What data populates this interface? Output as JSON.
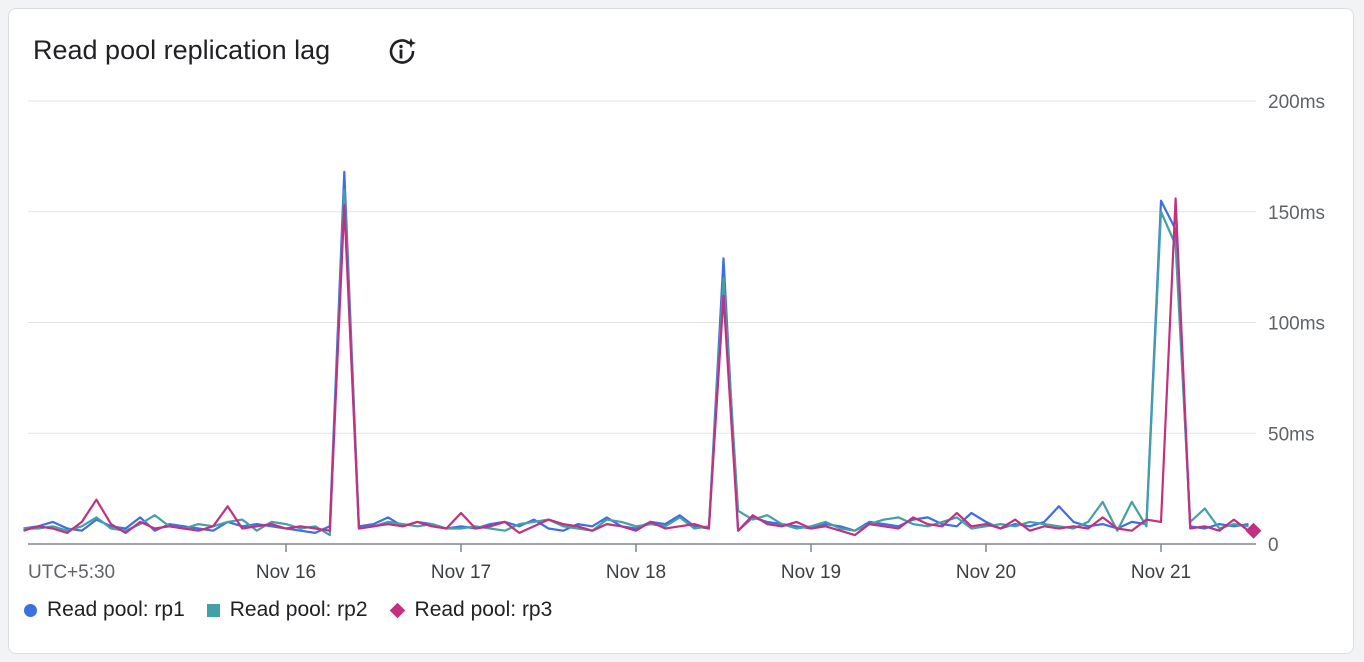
{
  "card": {
    "title": "Read pool replication lag",
    "info_icon": "info-sparkle-icon"
  },
  "chart_data": {
    "type": "line",
    "title": "Read pool replication lag",
    "timezone_label": "UTC+5:30",
    "x_ticks": [
      "Nov 16",
      "Nov 17",
      "Nov 18",
      "Nov 19",
      "Nov 20",
      "Nov 21"
    ],
    "y_ticks": [
      "0",
      "50ms",
      "100ms",
      "150ms",
      "200ms"
    ],
    "ylim": [
      0,
      200
    ],
    "y_unit": "ms",
    "grid": true,
    "legend_position": "bottom-left",
    "x": [
      "Nov 14 12:00",
      "Nov 14 14:00",
      "Nov 14 16:00",
      "Nov 14 18:00",
      "Nov 14 20:00",
      "Nov 14 22:00",
      "Nov 15 00:00",
      "Nov 15 02:00",
      "Nov 15 04:00",
      "Nov 15 06:00",
      "Nov 15 08:00",
      "Nov 15 10:00",
      "Nov 15 12:00",
      "Nov 15 14:00",
      "Nov 15 16:00",
      "Nov 15 18:00",
      "Nov 15 20:00",
      "Nov 15 22:00",
      "Nov 16 00:00",
      "Nov 16 02:00",
      "Nov 16 04:00",
      "Nov 16 06:00",
      "Nov 16 08:00",
      "Nov 16 10:00",
      "Nov 16 12:00",
      "Nov 16 14:00",
      "Nov 16 16:00",
      "Nov 16 18:00",
      "Nov 16 20:00",
      "Nov 16 22:00",
      "Nov 17 00:00",
      "Nov 17 02:00",
      "Nov 17 04:00",
      "Nov 17 06:00",
      "Nov 17 08:00",
      "Nov 17 10:00",
      "Nov 17 12:00",
      "Nov 17 14:00",
      "Nov 17 16:00",
      "Nov 17 18:00",
      "Nov 17 20:00",
      "Nov 17 22:00",
      "Nov 18 00:00",
      "Nov 18 02:00",
      "Nov 18 04:00",
      "Nov 18 06:00",
      "Nov 18 08:00",
      "Nov 18 10:00",
      "Nov 18 12:00",
      "Nov 18 14:00",
      "Nov 18 16:00",
      "Nov 18 18:00",
      "Nov 18 20:00",
      "Nov 18 22:00",
      "Nov 19 00:00",
      "Nov 19 02:00",
      "Nov 19 04:00",
      "Nov 19 06:00",
      "Nov 19 08:00",
      "Nov 19 10:00",
      "Nov 19 12:00",
      "Nov 19 14:00",
      "Nov 19 16:00",
      "Nov 19 18:00",
      "Nov 19 20:00",
      "Nov 19 22:00",
      "Nov 20 00:00",
      "Nov 20 02:00",
      "Nov 20 04:00",
      "Nov 20 06:00",
      "Nov 20 08:00",
      "Nov 20 10:00",
      "Nov 20 12:00",
      "Nov 20 14:00",
      "Nov 20 16:00",
      "Nov 20 18:00",
      "Nov 20 20:00",
      "Nov 20 22:00",
      "Nov 21 00:00",
      "Nov 21 02:00",
      "Nov 21 04:00",
      "Nov 21 06:00",
      "Nov 21 08:00",
      "Nov 21 10:00",
      "Nov 21 12:00"
    ],
    "series": [
      {
        "name": "Read pool: rp1",
        "color": "#3d6fe0",
        "marker": "circle",
        "values": [
          7,
          8,
          10,
          7,
          6,
          11,
          8,
          7,
          12,
          6,
          9,
          8,
          7,
          6,
          10,
          8,
          9,
          8,
          7,
          6,
          5,
          8,
          168,
          8,
          9,
          12,
          8,
          10,
          9,
          7,
          8,
          7,
          9,
          10,
          8,
          11,
          7,
          6,
          9,
          8,
          12,
          8,
          7,
          10,
          9,
          13,
          8,
          7,
          129,
          6,
          12,
          10,
          9,
          8,
          7,
          9,
          8,
          6,
          10,
          9,
          8,
          11,
          12,
          9,
          8,
          14,
          10,
          7,
          9,
          8,
          10,
          17,
          10,
          8,
          9,
          7,
          10,
          9,
          155,
          142,
          8,
          7,
          9,
          8,
          9
        ]
      },
      {
        "name": "Read pool: rp2",
        "color": "#449fa8",
        "marker": "square",
        "values": [
          7,
          7,
          8,
          6,
          8,
          12,
          7,
          6,
          9,
          13,
          8,
          7,
          9,
          8,
          10,
          11,
          6,
          10,
          9,
          7,
          8,
          4,
          160,
          7,
          8,
          10,
          9,
          8,
          9,
          7,
          7,
          8,
          7,
          6,
          9,
          10,
          11,
          8,
          7,
          6,
          11,
          10,
          8,
          9,
          8,
          12,
          7,
          8,
          120,
          15,
          11,
          13,
          9,
          7,
          8,
          10,
          7,
          6,
          9,
          11,
          12,
          9,
          8,
          10,
          12,
          7,
          8,
          9,
          8,
          10,
          9,
          8,
          7,
          10,
          19,
          6,
          19,
          8,
          150,
          135,
          10,
          16,
          7,
          9,
          8
        ]
      },
      {
        "name": "Read pool: rp3",
        "color": "#c2307f",
        "marker": "diamond",
        "values": [
          6,
          8,
          7,
          5,
          10,
          20,
          9,
          5,
          10,
          7,
          8,
          7,
          6,
          8,
          17,
          7,
          8,
          9,
          7,
          8,
          7,
          6,
          153,
          7,
          8,
          9,
          8,
          10,
          8,
          7,
          14,
          7,
          8,
          10,
          5,
          8,
          11,
          9,
          8,
          6,
          9,
          8,
          6,
          10,
          7,
          8,
          9,
          7,
          112,
          6,
          13,
          9,
          8,
          10,
          7,
          8,
          6,
          4,
          9,
          8,
          7,
          12,
          9,
          8,
          14,
          8,
          9,
          7,
          11,
          6,
          8,
          7,
          8,
          7,
          12,
          7,
          6,
          11,
          10,
          156,
          7,
          8,
          6,
          11,
          6
        ]
      }
    ]
  }
}
